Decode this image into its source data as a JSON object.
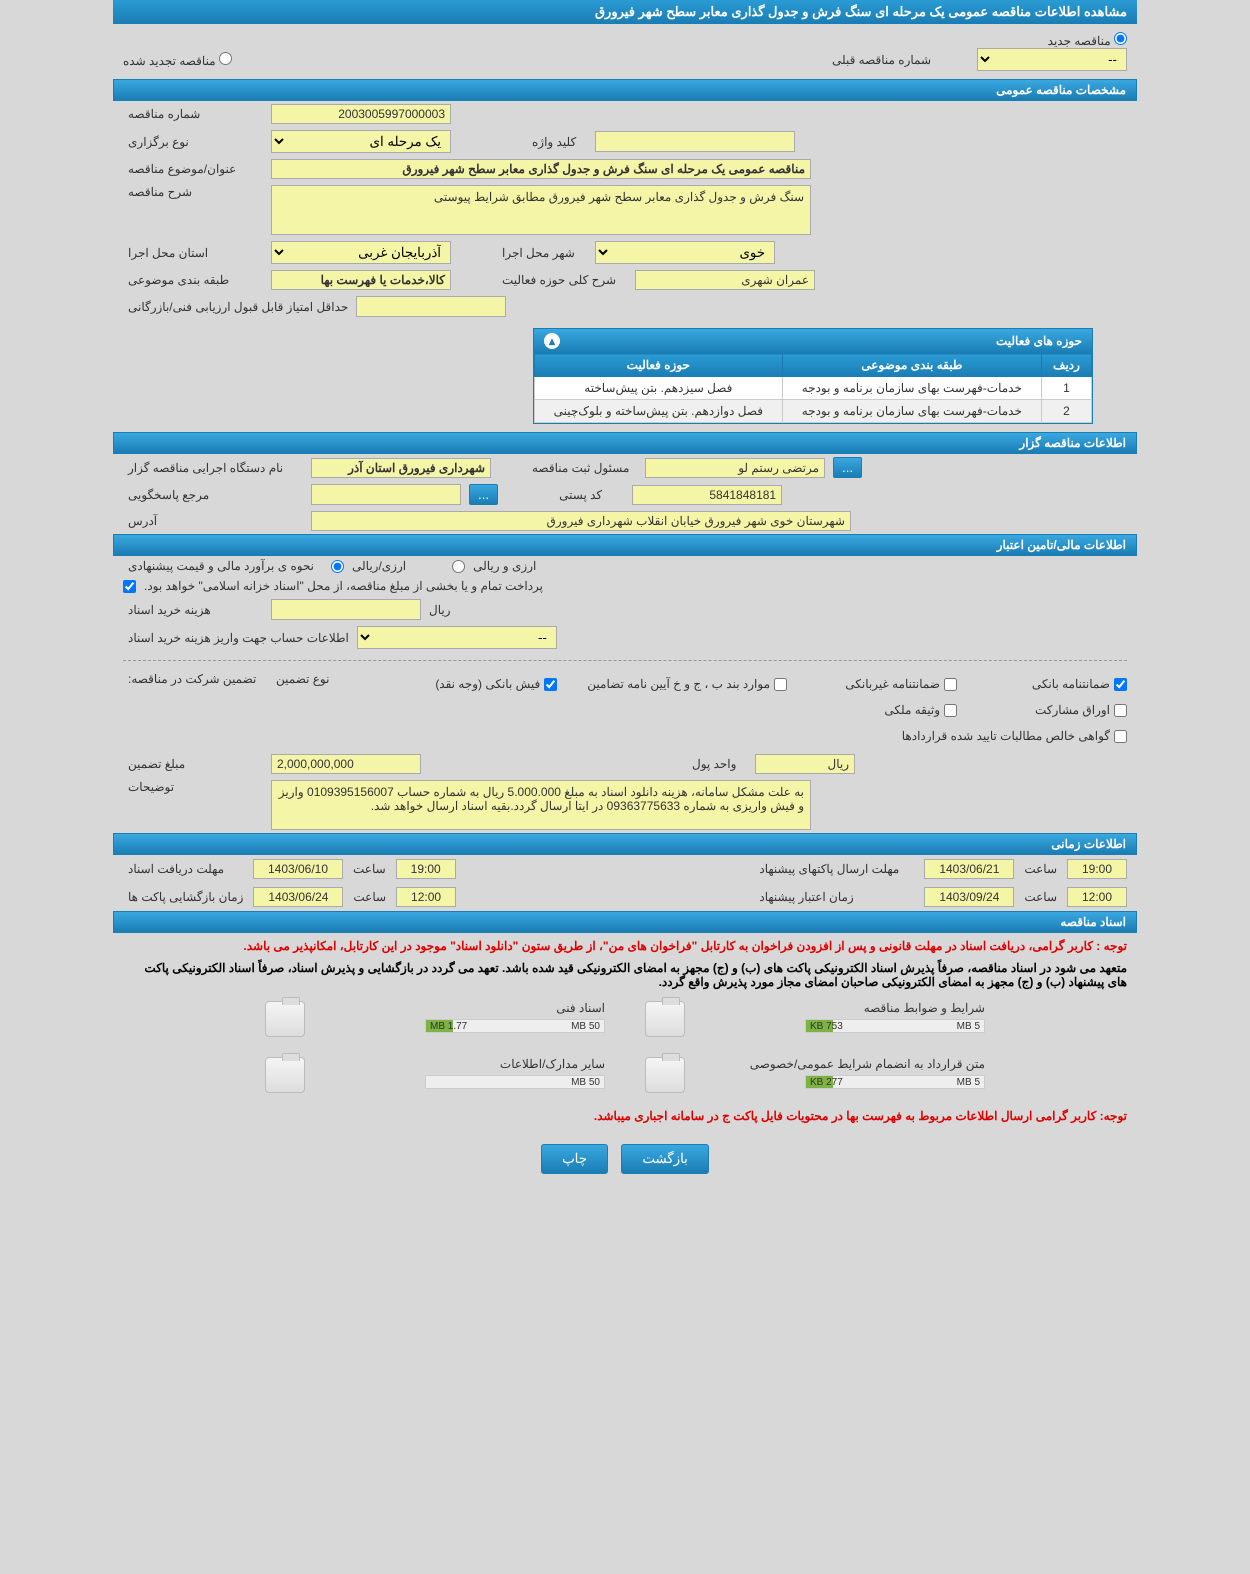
{
  "page_title": "مشاهده اطلاعات مناقصه عمومی یک مرحله ای سنگ فرش و جدول گذاری معابر سطح شهر فیرورق",
  "radio": {
    "new": "مناقصه جدید",
    "renewed": "مناقصه تجدید شده",
    "prev_label": "شماره مناقصه قبلی",
    "prev_value": "--"
  },
  "sections": {
    "spec": "مشخصات مناقصه عمومی",
    "organizer": "اطلاعات مناقصه گزار",
    "finance": "اطلاعات مالی/تامین اعتبار",
    "timing": "اطلاعات زمانی",
    "docs": "اسناد مناقصه"
  },
  "spec": {
    "tender_no_label": "شماره مناقصه",
    "tender_no": "2003005997000003",
    "type_label": "نوع برگزاری",
    "type": "یک مرحله ای",
    "keyword_label": "کلید واژه",
    "keyword": "",
    "title_label": "عنوان/موضوع مناقصه",
    "title": "مناقصه عمومی یک مرحله ای سنگ فرش و جدول گذاری معابر سطح شهر فیرورق",
    "desc_label": "شرح مناقصه",
    "desc": "سنگ فرش و جدول گذاری معابر سطح شهر فیرورق مطابق شرایط پیوستی",
    "province_label": "استان محل اجرا",
    "province": "آذربایجان غربی",
    "city_label": "شهر محل اجرا",
    "city": "خوی",
    "category_label": "طبقه بندی موضوعی",
    "category": "کالا،خدمات یا فهرست بها",
    "activity_desc_label": "شرح کلی حوزه فعالیت",
    "activity_desc": "عمران شهری",
    "min_score_label": "حداقل امتیاز قابل قبول ارزیابی فنی/بازرگانی",
    "min_score": ""
  },
  "activity_table": {
    "title": "حوزه های فعالیت",
    "col_row": "ردیف",
    "col_cat": "طبقه بندی موضوعی",
    "col_area": "حوزه فعالیت",
    "rows": [
      {
        "n": "1",
        "cat": "خدمات-فهرست بهای سازمان برنامه و بودجه",
        "area": "فصل سیزدهم. بتن پیش‌ساخته"
      },
      {
        "n": "2",
        "cat": "خدمات-فهرست بهای سازمان برنامه و بودجه",
        "area": "فصل دوازدهم. بتن پیش‌ساخته و بلوک‌چینی"
      }
    ]
  },
  "organizer": {
    "org_label": "نام دستگاه اجرایی مناقصه گزار",
    "org": "شهرداری فیرورق استان آذر",
    "reg_official_label": "مسئول ثبت مناقصه",
    "reg_official": "مرتضی رستم لو",
    "contact_label": "مرجع پاسخگویی",
    "contact": "",
    "postal_label": "کد پستی",
    "postal": "5841848181",
    "address_label": "آدرس",
    "address": "شهرستان خوی شهر فیرورق خیابان انقلاب شهرداری فیرورق"
  },
  "finance": {
    "estimate_label": "نحوه ی برآورد مالی و قیمت پیشنهادی",
    "rial": "ارزی/ریالی",
    "currency": "ارزی و ریالی",
    "payment_note": "پرداخت تمام و یا بخشی از مبلغ مناقصه، از محل \"اسناد خزانه اسلامی\" خواهد بود.",
    "doc_cost_label": "هزینه خرید اسناد",
    "doc_cost_unit": "ریال",
    "account_label": "اطلاعات حساب جهت واریز هزینه خرید اسناد",
    "account_value": "--",
    "guarantee_label": "تضمین شرکت در مناقصه:",
    "guarantee_type_label": "نوع تضمین",
    "checks": {
      "bank": "ضمانتنامه بانکی",
      "nonbank": "ضمانتنامه غیربانکی",
      "clause": "موارد بند ب ، ج و خ آیین نامه تضامین",
      "cash": "فیش بانکی (وجه نقد)",
      "partnership": "اوراق مشارکت",
      "property": "وثیقه ملکی",
      "receivables": "گواهی خالص مطالبات تایید شده قراردادها"
    },
    "amount_label": "مبلغ تضمین",
    "amount": "2,000,000,000",
    "unit_label": "واحد پول",
    "unit": "ریال",
    "notes_label": "توضیحات",
    "notes": "به علت مشکل سامانه، هزینه دانلود اسناد به مبلغ 5.000.000 ریال به شماره حساب 0109395156007 واریز و فیش واریزی به شماره 09363775633 در ایتا ارسال گردد.بقیه اسناد ارسال خواهد شد."
  },
  "timing": {
    "receive_label": "مهلت دریافت اسناد",
    "receive_date": "1403/06/10",
    "receive_time": "19:00",
    "send_label": "مهلت ارسال پاکتهای پیشنهاد",
    "send_date": "1403/06/21",
    "send_time": "19:00",
    "open_label": "زمان بازگشایی پاکت ها",
    "open_date": "1403/06/24",
    "open_time": "12:00",
    "validity_label": "زمان اعتبار پیشنهاد",
    "validity_date": "1403/09/24",
    "validity_time": "12:00",
    "time_lbl": "ساعت"
  },
  "docs": {
    "notice1": "توجه : کاربر گرامی، دریافت اسناد در مهلت قانونی و پس از افزودن فراخوان به کارتابل \"فراخوان های من\"، از طریق ستون \"دانلود اسناد\" موجود در این کارتابل، امکانپذیر می باشد.",
    "notice2": "متعهد می شود در اسناد مناقصه، صرفاً پذیرش اسناد الکترونیکی پاکت های (ب) و (ج) مجهز به امضای الکترونیکی قید شده باشد. تعهد می گردد در بازگشایی و پذیرش اسناد، صرفاً اسناد الکترونیکی پاکت های پیشنهاد (ب) و (ج) مجهز به امضای الکترونیکی صاحبان امضای مجاز مورد پذیرش واقع گردد.",
    "files": [
      {
        "title": "شرایط و ضوابط مناقصه",
        "max": "5 MB",
        "used": "753 KB"
      },
      {
        "title": "اسناد فنی",
        "max": "50 MB",
        "used": "1.77 MB"
      },
      {
        "title": "متن قرارداد به انضمام شرایط عمومی/خصوصی",
        "max": "5 MB",
        "used": "277 KB"
      },
      {
        "title": "سایر مدارک/اطلاعات",
        "max": "50 MB",
        "used": ""
      }
    ],
    "notice3": "توجه: کاربر گرامی ارسال اطلاعات مربوط به فهرست بها در محتویات فایل پاکت ج در سامانه اجباری میباشد."
  },
  "buttons": {
    "back": "بازگشت",
    "print": "چاپ",
    "dots": "..."
  },
  "colors": {
    "header_grad_top": "#3aa8e0",
    "header_grad_bottom": "#1a7db4",
    "field_bg": "#f5f5a8",
    "page_bg": "#d8d8d8",
    "red": "#d00",
    "green": "#7cb342"
  }
}
